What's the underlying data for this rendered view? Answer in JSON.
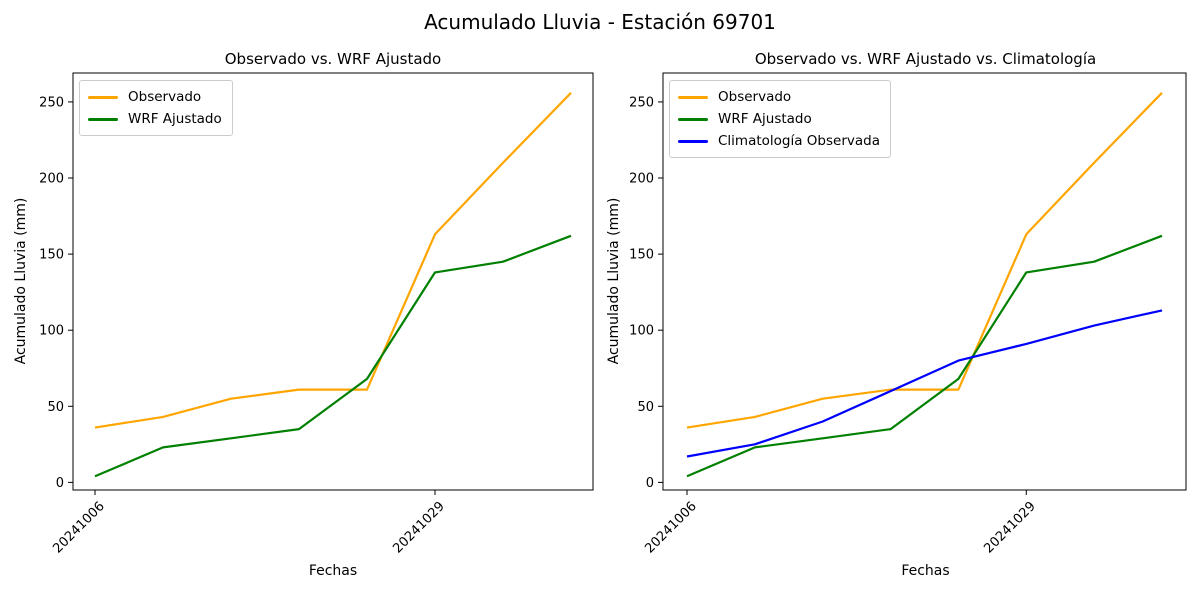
{
  "suptitle": "Acumulado Lluvia - Estación 69701",
  "chart_data": [
    {
      "type": "line",
      "title": "Observado vs. WRF Ajustado",
      "xlabel": "Fechas",
      "ylabel": "Acumulado Lluvia (mm)",
      "n_points": 8,
      "x_tick_labels": [
        {
          "index": 0,
          "label": "20241006"
        },
        {
          "index": 5,
          "label": "20241029"
        }
      ],
      "yticks": [
        0,
        50,
        100,
        150,
        200,
        250
      ],
      "ylim": [
        -5,
        269
      ],
      "grid": false,
      "legend_position": "upper-left",
      "series": [
        {
          "name": "Observado",
          "color": "#FFA500",
          "values": [
            36,
            43,
            55,
            61,
            61,
            163,
            210,
            256
          ]
        },
        {
          "name": "WRF Ajustado",
          "color": "#008000",
          "values": [
            4,
            23,
            29,
            35,
            68,
            138,
            145,
            162
          ]
        }
      ]
    },
    {
      "type": "line",
      "title": "Observado vs. WRF Ajustado vs. Climatología",
      "xlabel": "Fechas",
      "ylabel": "Acumulado Lluvia (mm)",
      "n_points": 8,
      "x_tick_labels": [
        {
          "index": 0,
          "label": "20241006"
        },
        {
          "index": 5,
          "label": "20241029"
        }
      ],
      "yticks": [
        0,
        50,
        100,
        150,
        200,
        250
      ],
      "ylim": [
        -5,
        269
      ],
      "grid": false,
      "legend_position": "upper-left",
      "series": [
        {
          "name": "Observado",
          "color": "#FFA500",
          "values": [
            36,
            43,
            55,
            61,
            61,
            163,
            210,
            256
          ]
        },
        {
          "name": "WRF Ajustado",
          "color": "#008000",
          "values": [
            4,
            23,
            29,
            35,
            68,
            138,
            145,
            162
          ]
        },
        {
          "name": "Climatología Observada",
          "color": "#0000FF",
          "values": [
            17,
            25,
            40,
            60,
            80,
            91,
            103,
            113
          ]
        }
      ]
    }
  ]
}
